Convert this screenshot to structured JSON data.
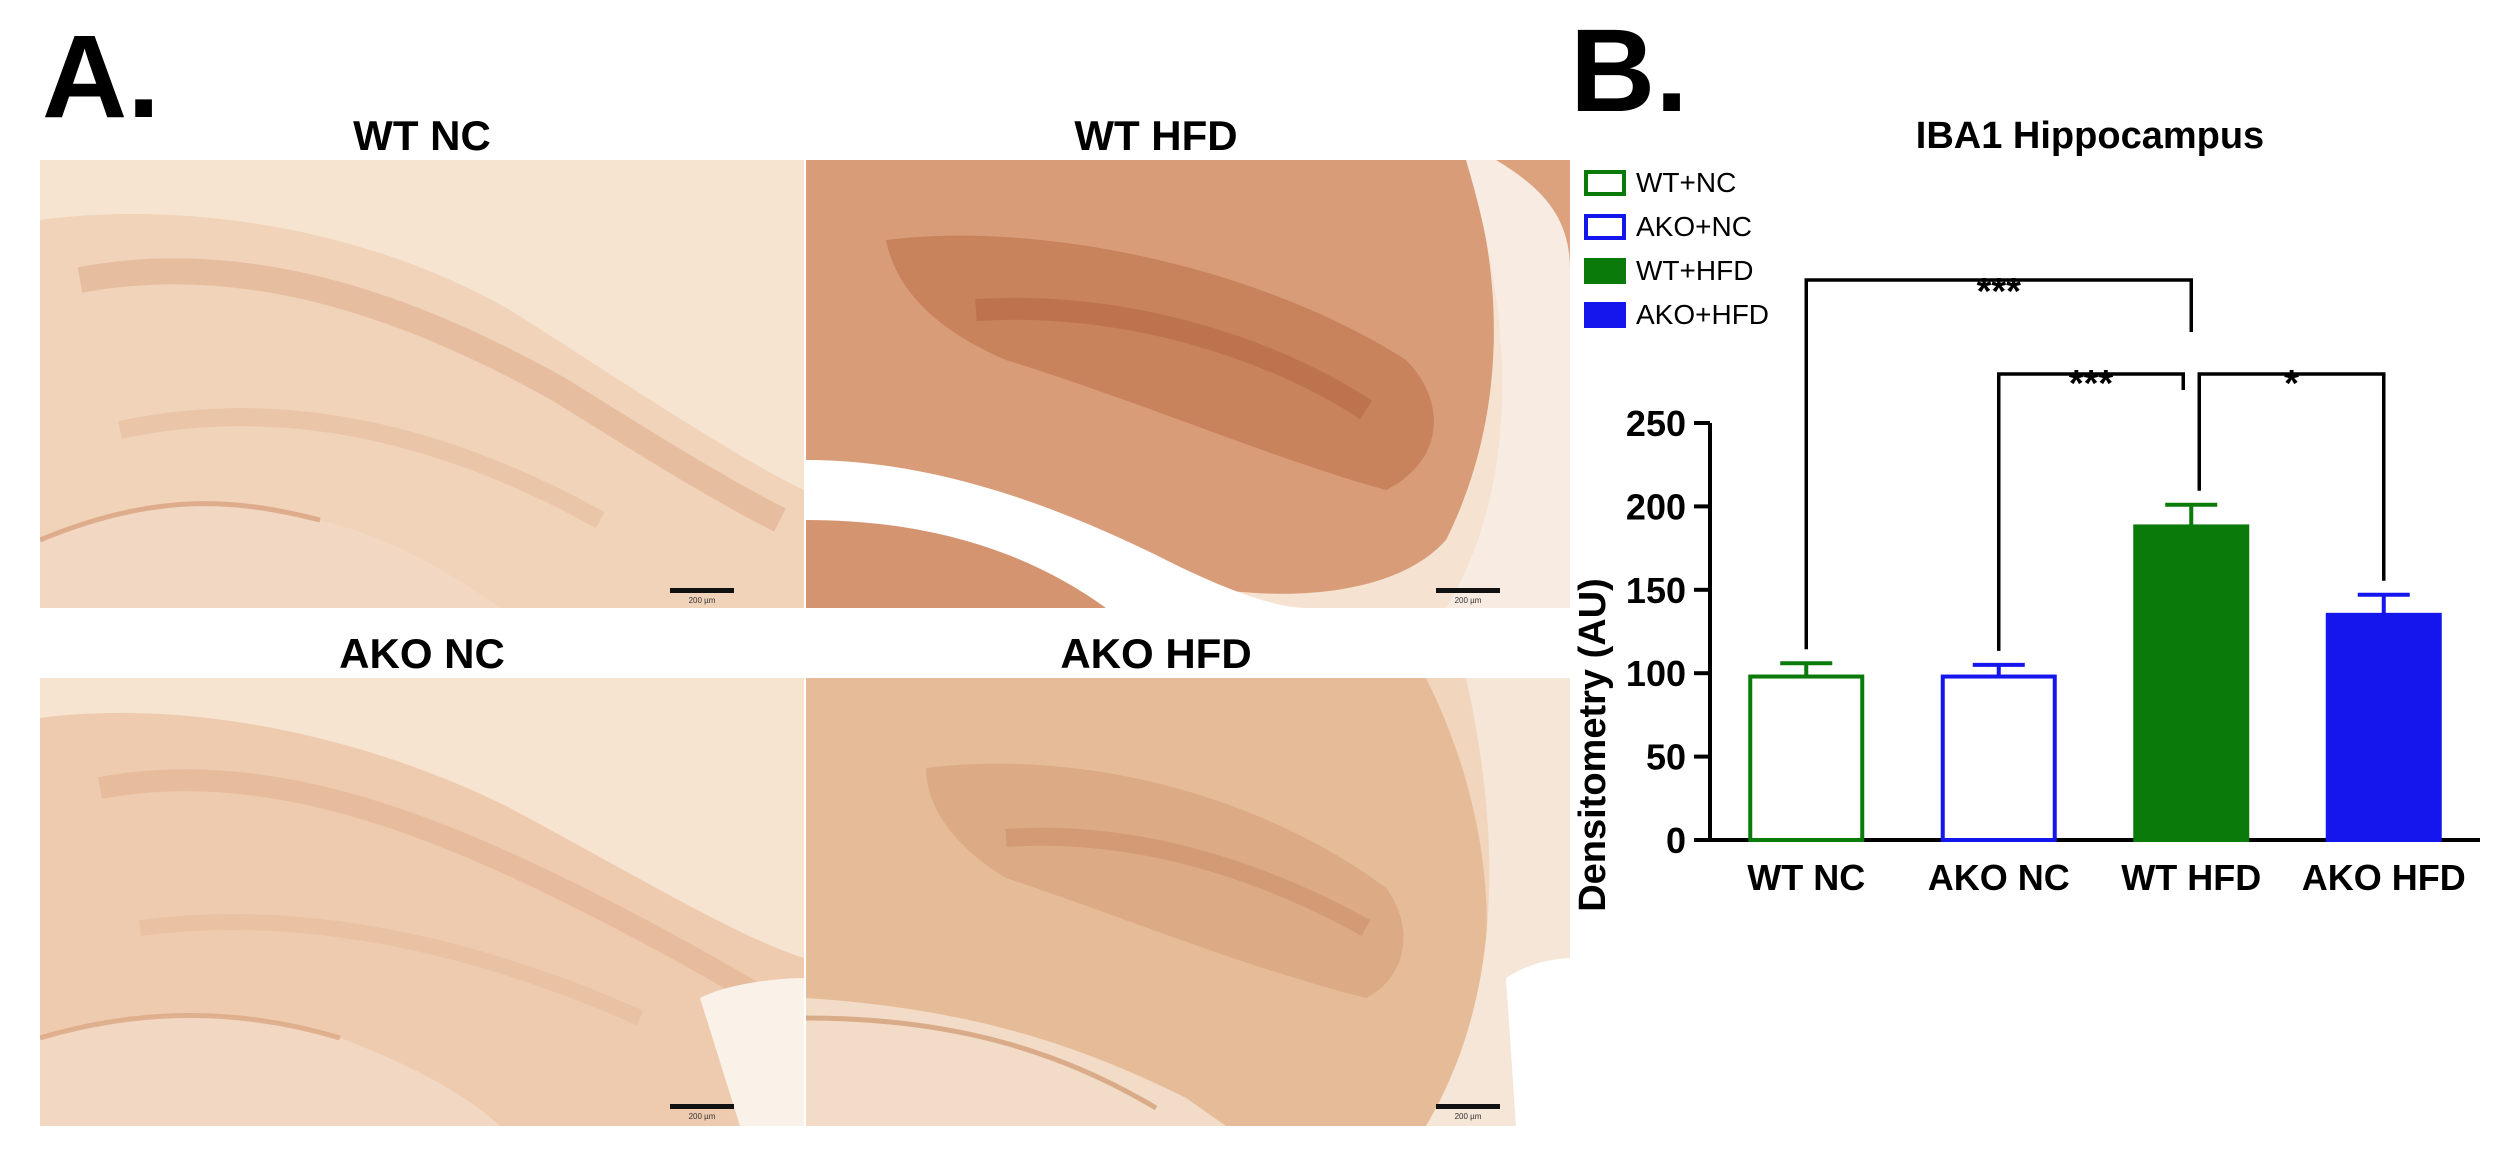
{
  "panel_a": {
    "letter": "A.",
    "images": [
      {
        "title": "WT NC",
        "scale_label": "200 µm",
        "stain": "light"
      },
      {
        "title": "WT HFD",
        "scale_label": "200 µm",
        "stain": "dark"
      },
      {
        "title": "AKO NC",
        "scale_label": "200 µm",
        "stain": "light"
      },
      {
        "title": "AKO HFD",
        "scale_label": "200 µm",
        "stain": "medium"
      }
    ]
  },
  "panel_b": {
    "letter": "B."
  },
  "colors": {
    "green": "#0a7a0a",
    "blue": "#1515ee",
    "stain_bg": "#f7e6d6",
    "stain_light": "#edc7a8",
    "stain_dark": "#c7835c",
    "stain_medium": "#dfae8a"
  },
  "chart_data": {
    "type": "bar",
    "title": "IBA1 Hippocampus",
    "ylabel": "Densitometry (AU)",
    "xlabel": "",
    "ylim": [
      0,
      250
    ],
    "yticks": [
      0,
      50,
      100,
      150,
      200,
      250
    ],
    "categories": [
      "WT NC",
      "AKO NC",
      "WT HFD",
      "AKO HFD"
    ],
    "values": [
      98,
      98,
      188,
      135
    ],
    "errors": [
      8,
      7,
      13,
      12
    ],
    "bar_styles": [
      {
        "edge": "#0a7a0a",
        "fill": "#ffffff"
      },
      {
        "edge": "#1515ee",
        "fill": "#ffffff"
      },
      {
        "edge": "#0a7a0a",
        "fill": "#0a7a0a"
      },
      {
        "edge": "#1515ee",
        "fill": "#1515ee"
      }
    ],
    "legend": {
      "placement": "top-left",
      "entries": [
        {
          "label": "WT+NC",
          "edge": "#0a7a0a",
          "fill": "#ffffff"
        },
        {
          "label": "AKO+NC",
          "edge": "#1515ee",
          "fill": "#ffffff"
        },
        {
          "label": "WT+HFD",
          "edge": "#0a7a0a",
          "fill": "#0a7a0a"
        },
        {
          "label": "AKO+HFD",
          "edge": "#1515ee",
          "fill": "#1515ee"
        }
      ]
    },
    "significance": [
      {
        "from": 0,
        "to": 2,
        "label": "***"
      },
      {
        "from": 1,
        "to": 2,
        "label": "***"
      },
      {
        "from": 2,
        "to": 3,
        "label": "*"
      }
    ],
    "grid": false
  }
}
